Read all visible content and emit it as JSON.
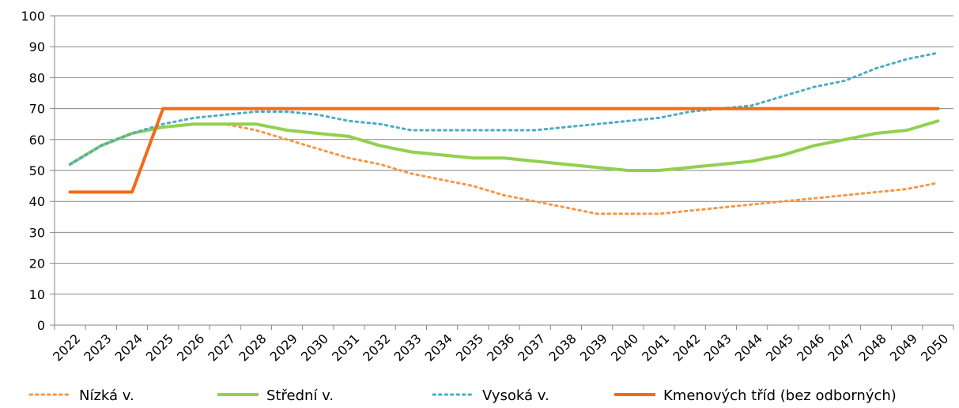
{
  "chart_data": {
    "type": "line",
    "title": "",
    "xlabel": "",
    "ylabel": "",
    "ylim": [
      0,
      100
    ],
    "yticks": [
      0,
      10,
      20,
      30,
      40,
      50,
      60,
      70,
      80,
      90,
      100
    ],
    "grid": "horizontal",
    "legend_position": "bottom",
    "categories": [
      "2022",
      "2023",
      "2024",
      "2025",
      "2026",
      "2027",
      "2028",
      "2029",
      "2030",
      "2031",
      "2032",
      "2033",
      "2034",
      "2035",
      "2036",
      "2037",
      "2038",
      "2039",
      "2040",
      "2041",
      "2042",
      "2043",
      "2044",
      "2045",
      "2046",
      "2047",
      "2048",
      "2049",
      "2050"
    ],
    "series": [
      {
        "name": "Nízká v.",
        "color": "#F79646",
        "style": "dotted",
        "values": [
          52,
          58,
          62,
          64,
          65,
          65,
          63,
          60,
          57,
          54,
          52,
          49,
          47,
          45,
          42,
          40,
          38,
          36,
          36,
          36,
          37,
          38,
          39,
          40,
          41,
          42,
          43,
          44,
          46
        ]
      },
      {
        "name": "Střední v.",
        "color": "#92D050",
        "style": "solid",
        "values": [
          52,
          58,
          62,
          64,
          65,
          65,
          65,
          63,
          62,
          61,
          58,
          56,
          55,
          54,
          54,
          53,
          52,
          51,
          50,
          50,
          51,
          52,
          53,
          55,
          58,
          60,
          62,
          63,
          66
        ]
      },
      {
        "name": "Vysoká v.",
        "color": "#4BACC6",
        "style": "dotted",
        "values": [
          52,
          58,
          62,
          65,
          67,
          68,
          69,
          69,
          68,
          66,
          65,
          63,
          63,
          63,
          63,
          63,
          64,
          65,
          66,
          67,
          69,
          70,
          71,
          74,
          77,
          79,
          83,
          86,
          88
        ]
      },
      {
        "name": "Kmenových tříd (bez odborných)",
        "color": "#F26B16",
        "style": "solid",
        "values": [
          43,
          43,
          43,
          70,
          70,
          70,
          70,
          70,
          70,
          70,
          70,
          70,
          70,
          70,
          70,
          70,
          70,
          70,
          70,
          70,
          70,
          70,
          70,
          70,
          70,
          70,
          70,
          70,
          70
        ]
      }
    ]
  }
}
